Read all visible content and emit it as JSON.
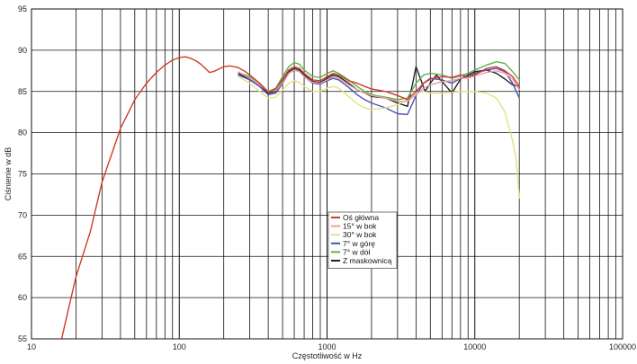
{
  "chart_data": {
    "type": "line",
    "xscale": "log",
    "xlabel": "Częstotliwość w Hz",
    "ylabel": "Ciśnienie w dB",
    "xlim": [
      10,
      100000
    ],
    "ylim": [
      55,
      95
    ],
    "grid": true,
    "legend_position": "center-lower",
    "x_tick_labels": [
      "10",
      "100",
      "1000",
      "10000",
      "100000"
    ],
    "y_tick_labels": [
      "55",
      "60",
      "65",
      "70",
      "75",
      "80",
      "85",
      "90",
      "95"
    ],
    "series": [
      {
        "name": "Oś główna",
        "color": "#d23a2c",
        "points": [
          [
            16,
            55
          ],
          [
            18,
            59
          ],
          [
            20,
            62.5
          ],
          [
            25,
            68
          ],
          [
            30,
            74
          ],
          [
            35,
            77.5
          ],
          [
            40,
            80.5
          ],
          [
            50,
            84
          ],
          [
            60,
            86
          ],
          [
            70,
            87.3
          ],
          [
            80,
            88.2
          ],
          [
            90,
            88.8
          ],
          [
            100,
            89.1
          ],
          [
            110,
            89.2
          ],
          [
            120,
            89.0
          ],
          [
            130,
            88.7
          ],
          [
            140,
            88.3
          ],
          [
            150,
            87.8
          ],
          [
            160,
            87.3
          ],
          [
            170,
            87.4
          ],
          [
            180,
            87.6
          ],
          [
            200,
            88.0
          ],
          [
            220,
            88.1
          ],
          [
            250,
            87.9
          ],
          [
            280,
            87.4
          ],
          [
            300,
            87.0
          ],
          [
            350,
            86.0
          ],
          [
            400,
            84.9
          ],
          [
            450,
            85.3
          ],
          [
            500,
            86.5
          ],
          [
            550,
            87.6
          ],
          [
            600,
            88.0
          ],
          [
            650,
            87.8
          ],
          [
            700,
            87.2
          ],
          [
            800,
            86.4
          ],
          [
            900,
            86.3
          ],
          [
            1000,
            86.8
          ],
          [
            1100,
            87.2
          ],
          [
            1200,
            87.0
          ],
          [
            1400,
            86.3
          ],
          [
            1600,
            86.0
          ],
          [
            1800,
            85.6
          ],
          [
            2000,
            85.3
          ],
          [
            2500,
            85.0
          ],
          [
            3000,
            84.5
          ],
          [
            3500,
            84.0
          ],
          [
            4000,
            85.0
          ],
          [
            4500,
            86.0
          ],
          [
            5000,
            86.5
          ],
          [
            6000,
            86.8
          ],
          [
            7000,
            86.7
          ],
          [
            8000,
            87.0
          ],
          [
            9000,
            86.8
          ],
          [
            10000,
            87.0
          ],
          [
            12000,
            87.8
          ],
          [
            14000,
            88.0
          ],
          [
            16000,
            87.5
          ],
          [
            18000,
            86.8
          ],
          [
            20000,
            85.6
          ]
        ]
      },
      {
        "name": "15° w bok",
        "color": "#e8a0a0",
        "points": [
          [
            250,
            87.4
          ],
          [
            300,
            86.6
          ],
          [
            350,
            85.8
          ],
          [
            400,
            85.0
          ],
          [
            450,
            85.1
          ],
          [
            500,
            86.1
          ],
          [
            550,
            87.2
          ],
          [
            600,
            87.6
          ],
          [
            650,
            87.4
          ],
          [
            700,
            86.8
          ],
          [
            800,
            86.1
          ],
          [
            900,
            86.0
          ],
          [
            1000,
            86.4
          ],
          [
            1100,
            86.8
          ],
          [
            1200,
            86.6
          ],
          [
            1400,
            85.8
          ],
          [
            1600,
            85.2
          ],
          [
            1800,
            84.8
          ],
          [
            2000,
            84.5
          ],
          [
            2500,
            84.2
          ],
          [
            3000,
            83.8
          ],
          [
            3500,
            83.8
          ],
          [
            4000,
            84.6
          ],
          [
            4500,
            85.4
          ],
          [
            5000,
            85.8
          ],
          [
            6000,
            86.2
          ],
          [
            7000,
            86.3
          ],
          [
            8000,
            86.6
          ],
          [
            9000,
            86.6
          ],
          [
            10000,
            86.9
          ],
          [
            12000,
            87.3
          ],
          [
            14000,
            87.5
          ],
          [
            16000,
            87.2
          ],
          [
            18000,
            86.5
          ],
          [
            20000,
            85.2
          ]
        ]
      },
      {
        "name": "30° w bok",
        "color": "#e6e088",
        "points": [
          [
            250,
            86.8
          ],
          [
            300,
            86.0
          ],
          [
            350,
            85.0
          ],
          [
            400,
            84.2
          ],
          [
            450,
            84.3
          ],
          [
            500,
            85.2
          ],
          [
            550,
            86.0
          ],
          [
            600,
            86.3
          ],
          [
            650,
            86.1
          ],
          [
            700,
            85.6
          ],
          [
            800,
            85.0
          ],
          [
            900,
            85.0
          ],
          [
            1000,
            85.4
          ],
          [
            1100,
            85.6
          ],
          [
            1200,
            85.4
          ],
          [
            1400,
            84.4
          ],
          [
            1600,
            83.5
          ],
          [
            1800,
            83.0
          ],
          [
            2000,
            82.8
          ],
          [
            2500,
            83.0
          ],
          [
            3000,
            83.4
          ],
          [
            3500,
            84.0
          ],
          [
            4000,
            84.8
          ],
          [
            4500,
            85.0
          ],
          [
            5000,
            84.8
          ],
          [
            6000,
            84.8
          ],
          [
            7000,
            84.9
          ],
          [
            8000,
            85.0
          ],
          [
            9000,
            85.0
          ],
          [
            10000,
            85.0
          ],
          [
            12000,
            84.8
          ],
          [
            14000,
            84.2
          ],
          [
            16000,
            82.5
          ],
          [
            18000,
            79
          ],
          [
            19000,
            77
          ],
          [
            20000,
            72
          ]
        ]
      },
      {
        "name": "7° w górę",
        "color": "#4a52b4",
        "points": [
          [
            250,
            87.0
          ],
          [
            300,
            86.4
          ],
          [
            350,
            85.6
          ],
          [
            400,
            84.6
          ],
          [
            450,
            84.8
          ],
          [
            500,
            86.0
          ],
          [
            550,
            87.2
          ],
          [
            600,
            87.6
          ],
          [
            650,
            87.4
          ],
          [
            700,
            86.8
          ],
          [
            800,
            86.0
          ],
          [
            900,
            85.9
          ],
          [
            1000,
            86.3
          ],
          [
            1100,
            86.6
          ],
          [
            1200,
            86.4
          ],
          [
            1400,
            85.5
          ],
          [
            1600,
            84.6
          ],
          [
            1800,
            84.0
          ],
          [
            2000,
            83.6
          ],
          [
            2500,
            83.0
          ],
          [
            3000,
            82.3
          ],
          [
            3500,
            82.2
          ],
          [
            4000,
            84.5
          ],
          [
            4500,
            86.0
          ],
          [
            5000,
            86.6
          ],
          [
            6000,
            86.4
          ],
          [
            7000,
            86.0
          ],
          [
            8000,
            86.6
          ],
          [
            9000,
            86.8
          ],
          [
            10000,
            87.2
          ],
          [
            12000,
            87.6
          ],
          [
            14000,
            87.8
          ],
          [
            16000,
            87.4
          ],
          [
            18000,
            86.0
          ],
          [
            20000,
            84.2
          ]
        ]
      },
      {
        "name": "7° w dół",
        "color": "#5cb04e",
        "points": [
          [
            250,
            87.3
          ],
          [
            300,
            86.8
          ],
          [
            350,
            86.0
          ],
          [
            400,
            85.0
          ],
          [
            450,
            85.4
          ],
          [
            500,
            86.8
          ],
          [
            550,
            88.0
          ],
          [
            600,
            88.5
          ],
          [
            650,
            88.3
          ],
          [
            700,
            87.6
          ],
          [
            800,
            86.8
          ],
          [
            900,
            86.7
          ],
          [
            1000,
            87.2
          ],
          [
            1100,
            87.5
          ],
          [
            1200,
            87.2
          ],
          [
            1400,
            86.4
          ],
          [
            1600,
            85.6
          ],
          [
            1800,
            85.0
          ],
          [
            2000,
            84.6
          ],
          [
            2500,
            84.3
          ],
          [
            3000,
            84.0
          ],
          [
            3500,
            84.2
          ],
          [
            4000,
            86.0
          ],
          [
            4500,
            87.0
          ],
          [
            5000,
            87.2
          ],
          [
            6000,
            87.0
          ],
          [
            7000,
            86.6
          ],
          [
            8000,
            86.9
          ],
          [
            9000,
            87.2
          ],
          [
            10000,
            87.6
          ],
          [
            12000,
            88.2
          ],
          [
            14000,
            88.6
          ],
          [
            16000,
            88.4
          ],
          [
            18000,
            87.4
          ],
          [
            20000,
            86.4
          ]
        ]
      },
      {
        "name": "Z maskownicą",
        "color": "#222222",
        "points": [
          [
            250,
            87.2
          ],
          [
            300,
            86.5
          ],
          [
            350,
            85.6
          ],
          [
            400,
            84.8
          ],
          [
            450,
            85.0
          ],
          [
            500,
            86.2
          ],
          [
            550,
            87.4
          ],
          [
            600,
            87.8
          ],
          [
            650,
            87.6
          ],
          [
            700,
            87.0
          ],
          [
            800,
            86.2
          ],
          [
            900,
            86.1
          ],
          [
            1000,
            86.6
          ],
          [
            1100,
            87.0
          ],
          [
            1200,
            86.8
          ],
          [
            1400,
            86.0
          ],
          [
            1600,
            85.2
          ],
          [
            1800,
            84.8
          ],
          [
            2000,
            84.4
          ],
          [
            2500,
            84.2
          ],
          [
            3000,
            83.6
          ],
          [
            3500,
            83.2
          ],
          [
            3800,
            86.0
          ],
          [
            4000,
            88.0
          ],
          [
            4300,
            86.5
          ],
          [
            4600,
            85.0
          ],
          [
            5000,
            86.0
          ],
          [
            5500,
            87.0
          ],
          [
            6000,
            86.2
          ],
          [
            6500,
            85.5
          ],
          [
            7000,
            84.8
          ],
          [
            8000,
            86.5
          ],
          [
            9000,
            87.0
          ],
          [
            10000,
            87.4
          ],
          [
            12000,
            87.6
          ],
          [
            14000,
            87.2
          ],
          [
            16000,
            86.5
          ],
          [
            18000,
            85.8
          ],
          [
            20000,
            85.6
          ]
        ]
      }
    ]
  }
}
